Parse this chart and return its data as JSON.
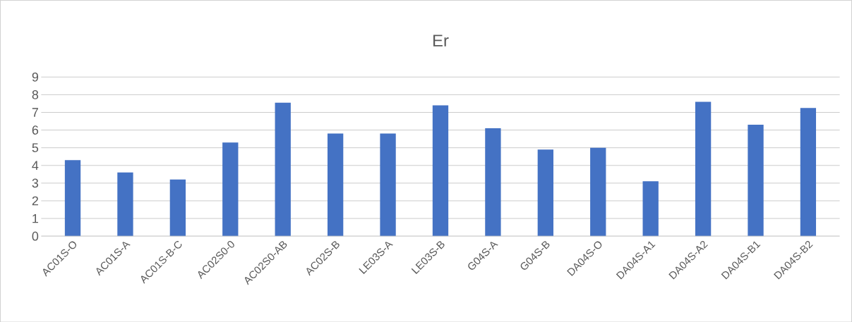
{
  "chart_data": {
    "type": "bar",
    "title": "Er",
    "categories": [
      "AC01S-O",
      "AC01S-A",
      "AC01S-B-C",
      "AC02S0-0",
      "AC02S0-AB",
      "AC02S-B",
      "LE03S-A",
      "LE03S-B",
      "G04S-A",
      "G04S-B",
      "DA04S-O",
      "DA04S-A1",
      "DA04S-A2",
      "DA04S-B1",
      "DA04S-B2"
    ],
    "values": [
      4.3,
      3.6,
      3.2,
      5.3,
      7.55,
      5.8,
      5.8,
      7.4,
      6.1,
      4.9,
      5.0,
      3.1,
      7.6,
      6.3,
      7.25
    ],
    "color": "#4472c4",
    "ylim": [
      0,
      9
    ],
    "yticks": [
      0,
      1,
      2,
      3,
      4,
      5,
      6,
      7,
      8,
      9
    ],
    "grid": "y"
  }
}
